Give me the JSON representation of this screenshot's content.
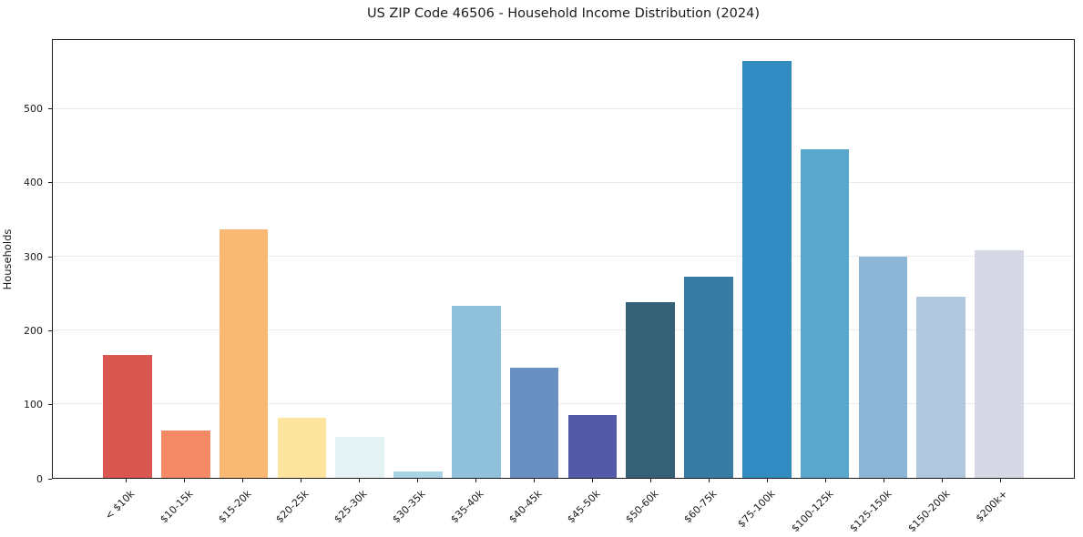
{
  "chart_data": {
    "type": "bar",
    "title": "US ZIP Code 46506 - Household Income Distribution (2024)",
    "xlabel": "",
    "ylabel": "Households",
    "categories": [
      "< $10k",
      "$10-15k",
      "$15-20k",
      "$20-25k",
      "$25-30k",
      "$30-35k",
      "$35-40k",
      "$40-45k",
      "$45-50k",
      "$50-60k",
      "$60-75k",
      "$75-100k",
      "$100-125k",
      "$125-150k",
      "$150-200k",
      "$200k+"
    ],
    "values": [
      167,
      64,
      337,
      82,
      55,
      9,
      233,
      149,
      85,
      238,
      273,
      565,
      446,
      300,
      246,
      309
    ],
    "bar_colors": [
      "#d9574f",
      "#f58a67",
      "#f9b974",
      "#fde5a0",
      "#e4f2f4",
      "#a8d4e6",
      "#8fc1dd",
      "#6990c0",
      "#555aa8",
      "#366076",
      "#377da3",
      "#328bc3",
      "#5aa7cd",
      "#8cb5d6",
      "#b0c7de",
      "#d7d8e6"
    ],
    "yticks": [
      0,
      100,
      200,
      300,
      400,
      500
    ],
    "ylim": [
      0,
      594
    ],
    "grid": "horizontal-light",
    "grid_color": "#ebebeb",
    "legend": "none",
    "background": "#ffffff"
  }
}
